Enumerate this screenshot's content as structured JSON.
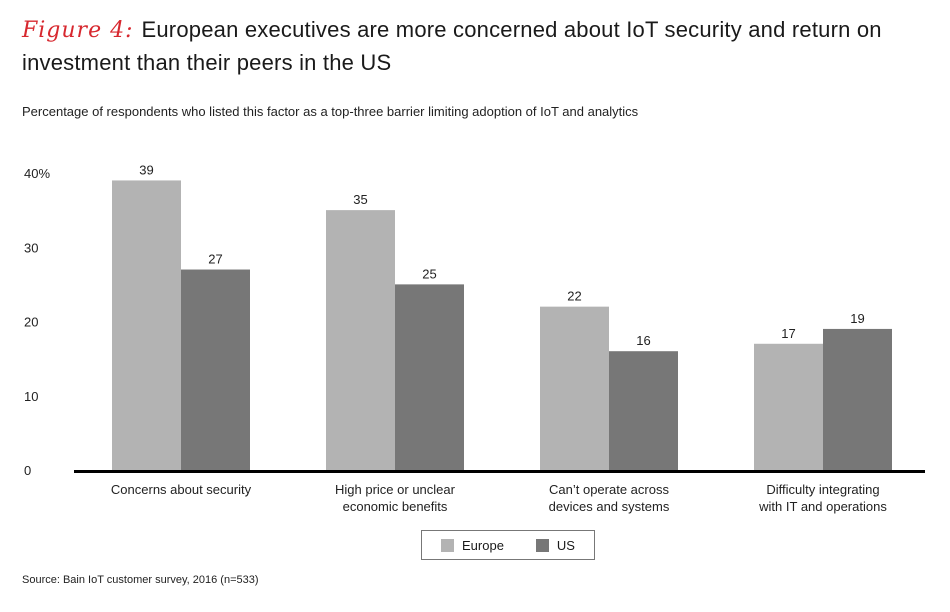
{
  "figure_label": "Figure 4:",
  "title": "European executives are more concerned about IoT security and return on investment than their peers in the US",
  "subtitle": "Percentage of respondents who listed this factor as a top-three barrier limiting adoption of IoT and analytics",
  "source": "Source: Bain IoT customer survey, 2016 (n=533)",
  "colors": {
    "europe": "#b3b3b3",
    "us": "#777777",
    "axis": "#000000"
  },
  "chart_data": {
    "type": "bar",
    "title": "European executives are more concerned about IoT security and return on investment than their peers in the US",
    "xlabel": "",
    "ylabel": "Percentage of respondents who listed this factor as a top-three barrier limiting adoption of IoT and analytics",
    "ylim": [
      0,
      40
    ],
    "yticks": [
      {
        "value": 0,
        "label": "0"
      },
      {
        "value": 10,
        "label": "10"
      },
      {
        "value": 20,
        "label": "20"
      },
      {
        "value": 30,
        "label": "30"
      },
      {
        "value": 40,
        "label": "40%"
      }
    ],
    "grid": false,
    "legend_position": "bottom-center",
    "categories": [
      [
        "Concerns about security"
      ],
      [
        "High price or unclear",
        "economic benefits"
      ],
      [
        "Can’t operate across",
        "devices and systems"
      ],
      [
        "Difficulty integrating",
        "with IT and operations"
      ]
    ],
    "series": [
      {
        "name": "Europe",
        "values": [
          39,
          35,
          22,
          17
        ]
      },
      {
        "name": "US",
        "values": [
          27,
          25,
          16,
          19
        ]
      }
    ]
  }
}
